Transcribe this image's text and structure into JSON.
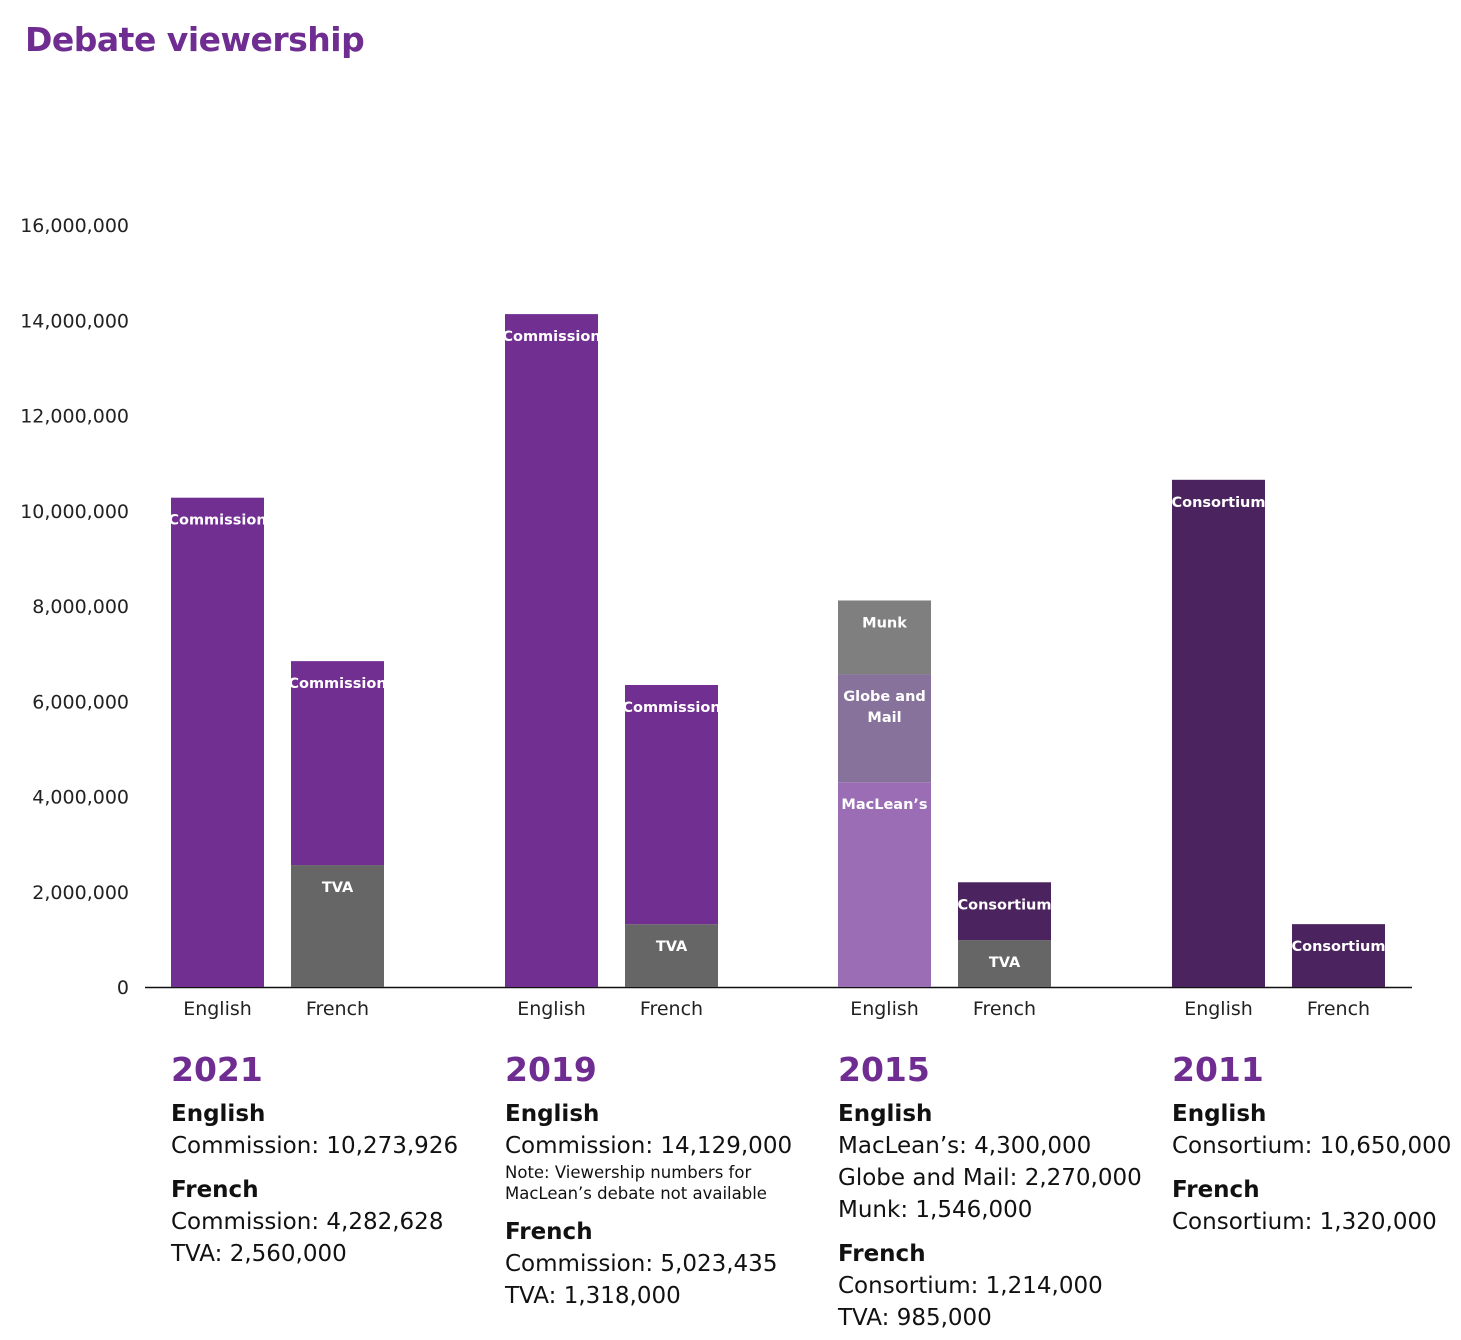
{
  "title": "Debate viewership",
  "chart_data": {
    "type": "bar",
    "stacked": true,
    "ylim": [
      0,
      16000000
    ],
    "yticks": [
      "0",
      "2,000,000",
      "4,000,000",
      "6,000,000",
      "8,000,000",
      "10,000,000",
      "12,000,000",
      "14,000,000",
      "16,000,000"
    ],
    "ytick_values": [
      0,
      2000000,
      4000000,
      6000000,
      8000000,
      10000000,
      12000000,
      14000000,
      16000000
    ],
    "grid": false,
    "groups": [
      {
        "year": "2021",
        "bars": [
          {
            "category": "English",
            "segments": [
              {
                "name": "Commission",
                "value": 10273926,
                "color": "#722f92"
              }
            ]
          },
          {
            "category": "French",
            "segments": [
              {
                "name": "TVA",
                "value": 2560000,
                "color": "#666666"
              },
              {
                "name": "Commission",
                "value": 4282628,
                "color": "#722f92"
              }
            ]
          }
        ]
      },
      {
        "year": "2019",
        "bars": [
          {
            "category": "English",
            "segments": [
              {
                "name": "Commission",
                "value": 14129000,
                "color": "#722f92"
              }
            ]
          },
          {
            "category": "French",
            "segments": [
              {
                "name": "TVA",
                "value": 1318000,
                "color": "#666666"
              },
              {
                "name": "Commission",
                "value": 5023435,
                "color": "#722f92"
              }
            ]
          }
        ]
      },
      {
        "year": "2015",
        "bars": [
          {
            "category": "English",
            "segments": [
              {
                "name": "MacLean’s",
                "value": 4300000,
                "color": "#9b6db5"
              },
              {
                "name": "Globe and Mail",
                "value": 2270000,
                "color": "#86729a"
              },
              {
                "name": "Munk",
                "value": 1546000,
                "color": "#7f7f7f"
              }
            ]
          },
          {
            "category": "French",
            "segments": [
              {
                "name": "TVA",
                "value": 985000,
                "color": "#666666"
              },
              {
                "name": "Consortium",
                "value": 1214000,
                "color": "#4b245f"
              }
            ]
          }
        ]
      },
      {
        "year": "2011",
        "bars": [
          {
            "category": "English",
            "segments": [
              {
                "name": "Consortium",
                "value": 10650000,
                "color": "#4b245f"
              }
            ]
          },
          {
            "category": "French",
            "segments": [
              {
                "name": "Consortium",
                "value": 1320000,
                "color": "#4b245f"
              }
            ]
          }
        ]
      }
    ]
  },
  "summaries": [
    {
      "year": "2021",
      "sections": [
        {
          "heading": "English",
          "lines": [
            "Commission: 10,273,926"
          ]
        },
        {
          "heading": "French",
          "lines": [
            "Commission: 4,282,628",
            "TVA: 2,560,000"
          ]
        }
      ]
    },
    {
      "year": "2019",
      "sections": [
        {
          "heading": "English",
          "lines": [
            "Commission: 14,129,000"
          ],
          "note": [
            "Note: Viewership numbers for",
            "MacLean’s debate not available"
          ]
        },
        {
          "heading": "French",
          "lines": [
            "Commission: 5,023,435",
            "TVA: 1,318,000"
          ]
        }
      ]
    },
    {
      "year": "2015",
      "sections": [
        {
          "heading": "English",
          "lines": [
            "MacLean’s: 4,300,000",
            "Globe and Mail: 2,270,000",
            "Munk: 1,546,000"
          ]
        },
        {
          "heading": "French",
          "lines": [
            "Consortium: 1,214,000",
            "TVA: 985,000"
          ]
        }
      ]
    },
    {
      "year": "2011",
      "sections": [
        {
          "heading": "English",
          "lines": [
            "Consortium: 10,650,000"
          ]
        },
        {
          "heading": "French",
          "lines": [
            "Consortium: 1,320,000"
          ]
        }
      ]
    }
  ]
}
